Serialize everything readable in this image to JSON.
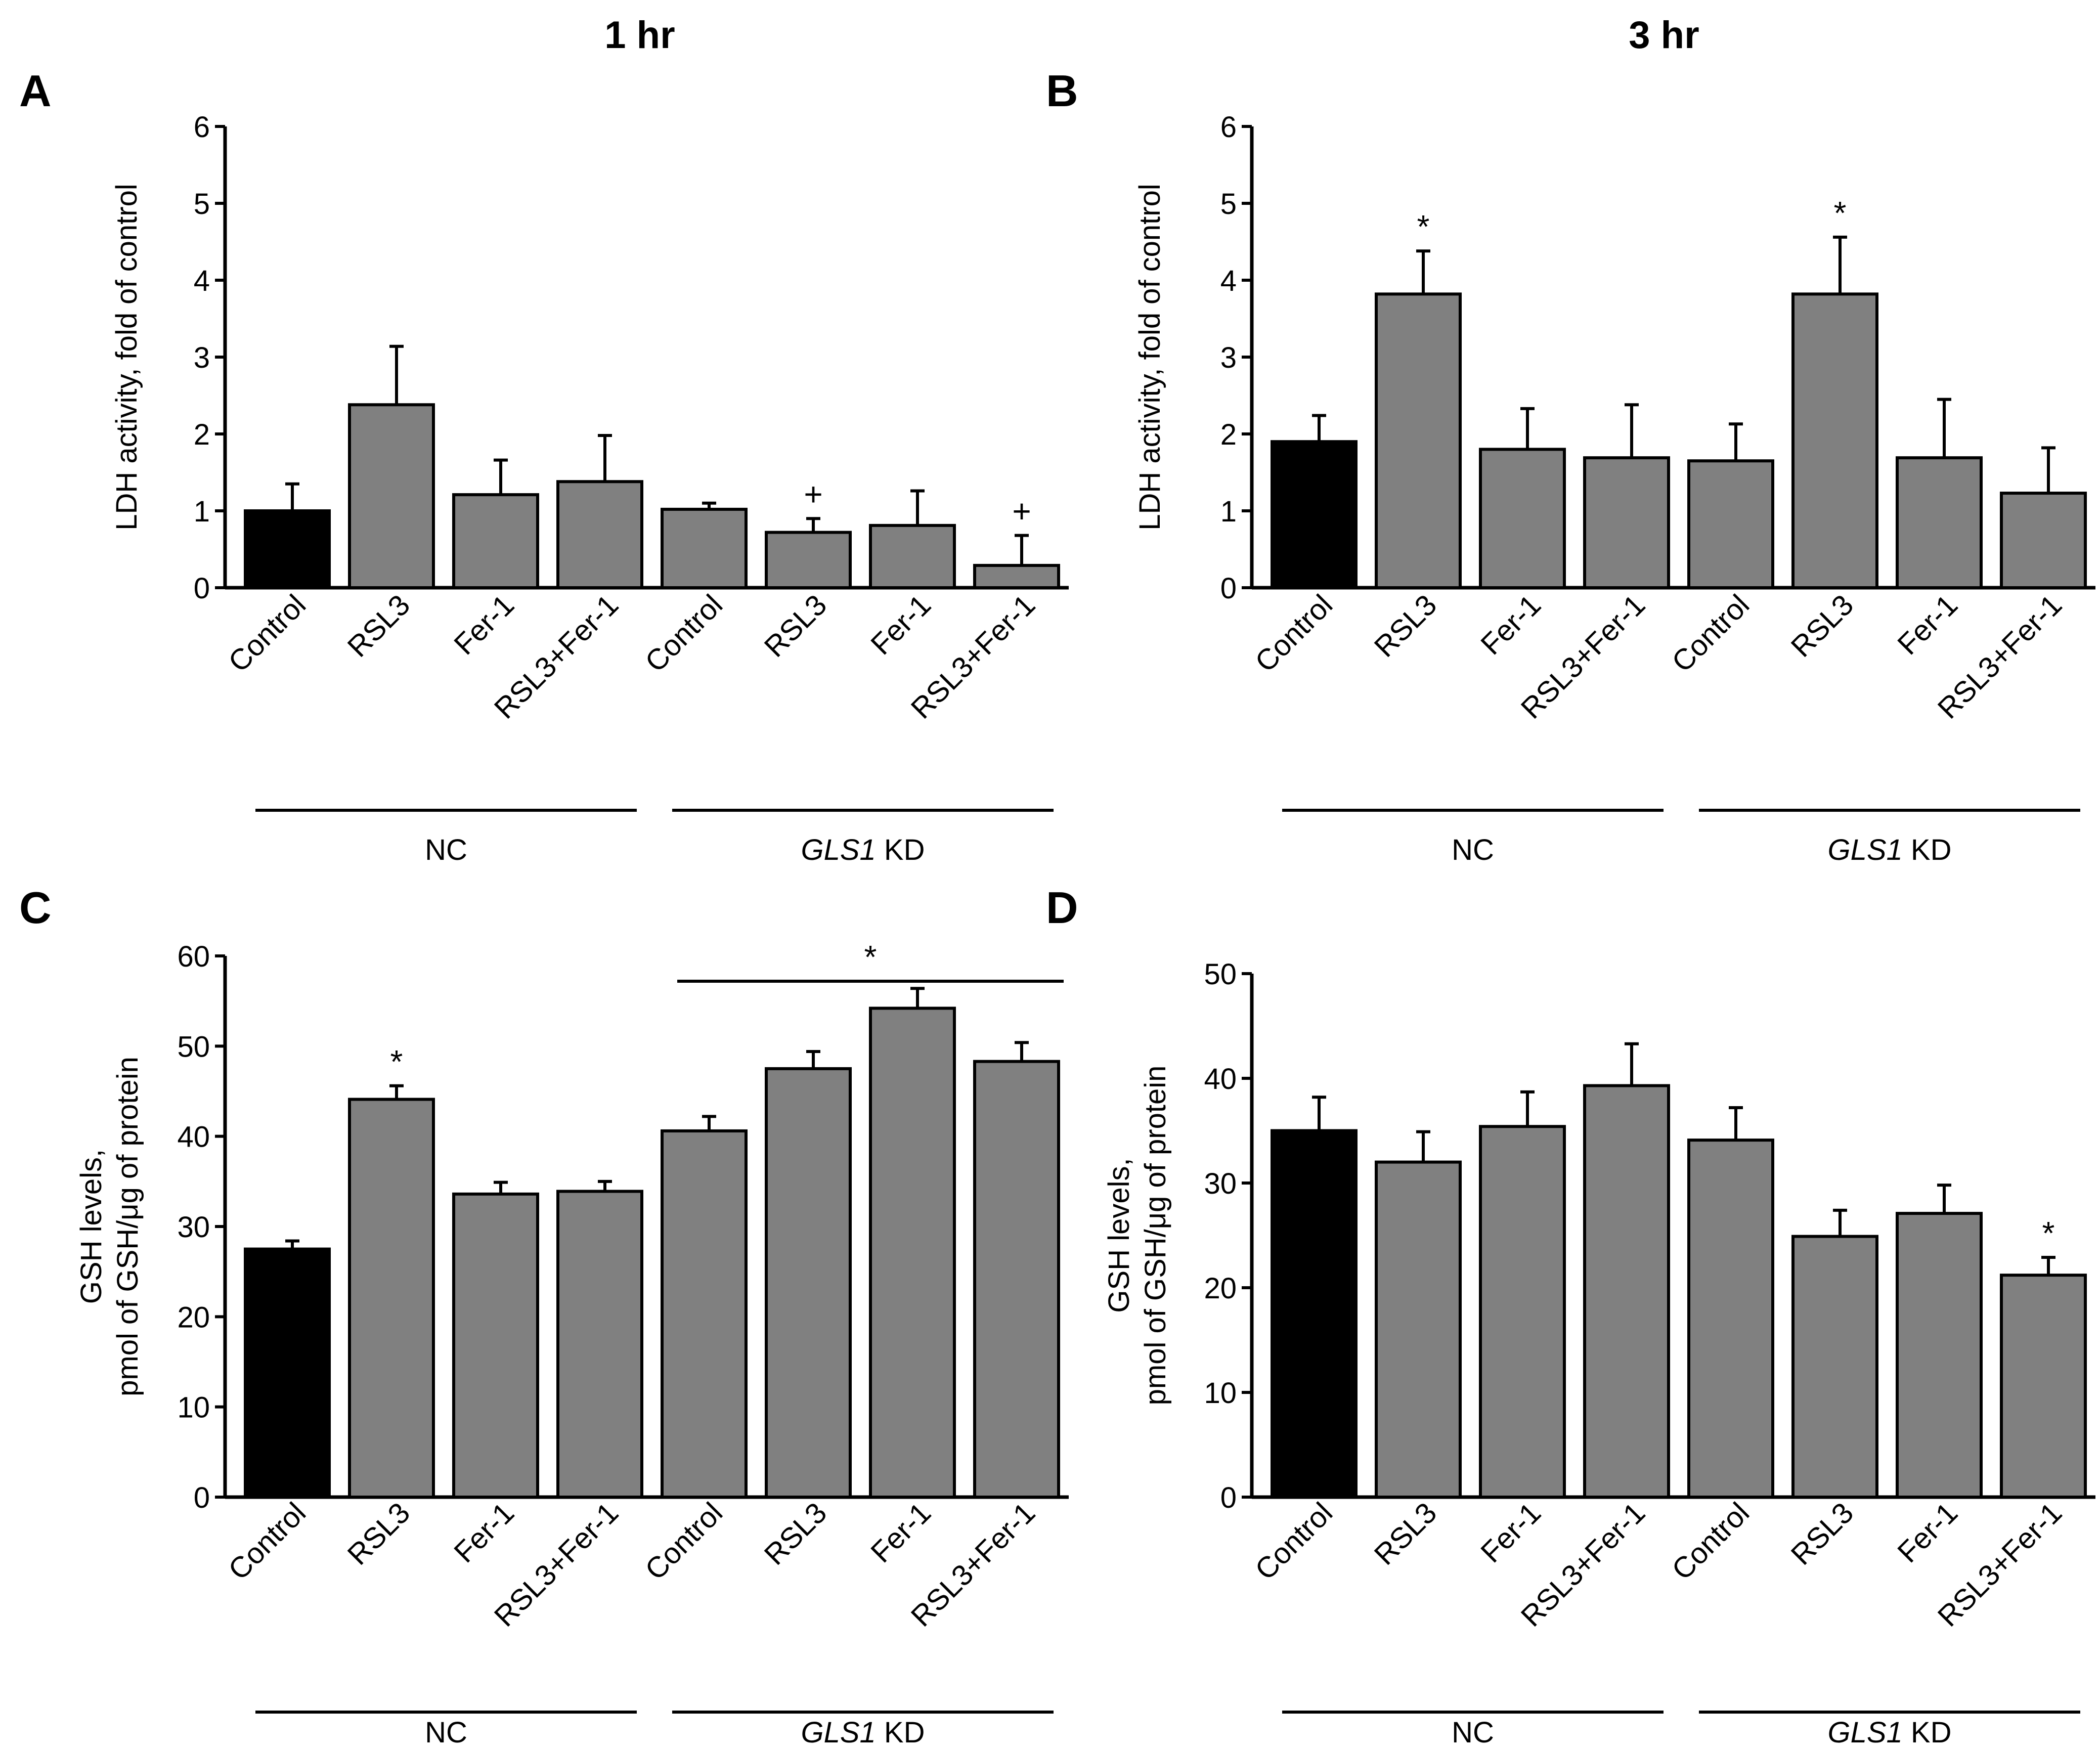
{
  "column_titles": [
    "1 hr",
    "3 hr"
  ],
  "group_labels": {
    "nc": "NC",
    "kd_gene": "GLS1",
    "kd_suffix": " KD"
  },
  "colors": {
    "control_bar": "#000000",
    "treatment_bar": "#808080"
  },
  "chart_data": [
    {
      "panel": "A",
      "type": "bar",
      "title": "1 hr",
      "ylabel": [
        "LDH activity, fold of control"
      ],
      "ylim": [
        0,
        6
      ],
      "yticks": [
        0,
        1,
        2,
        3,
        4,
        5,
        6
      ],
      "categories": [
        "Control",
        "RSL3",
        "Fer-1",
        "RSL3+Fer-1",
        "Control",
        "RSL3",
        "Fer-1",
        "RSL3+Fer-1"
      ],
      "groups": [
        {
          "label": "NC",
          "from": 0,
          "to": 3
        },
        {
          "label": "GLS1 KD",
          "from": 4,
          "to": 7
        }
      ],
      "values": [
        1.0,
        2.38,
        1.21,
        1.38,
        1.02,
        0.72,
        0.81,
        0.29
      ],
      "errors": [
        0.35,
        0.76,
        0.45,
        0.6,
        0.08,
        0.18,
        0.45,
        0.39
      ],
      "marks": [
        "",
        "",
        "",
        "",
        "",
        "+",
        "",
        "+"
      ],
      "bracket": null
    },
    {
      "panel": "B",
      "type": "bar",
      "title": "3 hr",
      "ylabel": [
        "LDH activity, fold of control"
      ],
      "ylim": [
        0,
        6
      ],
      "yticks": [
        0,
        1,
        2,
        3,
        4,
        5,
        6
      ],
      "categories": [
        "Control",
        "RSL3",
        "Fer-1",
        "RSL3+Fer-1",
        "Control",
        "RSL3",
        "Fer-1",
        "RSL3+Fer-1"
      ],
      "groups": [
        {
          "label": "NC",
          "from": 0,
          "to": 3
        },
        {
          "label": "GLS1 KD",
          "from": 4,
          "to": 7
        }
      ],
      "values": [
        1.9,
        3.82,
        1.8,
        1.69,
        1.65,
        3.82,
        1.69,
        1.23
      ],
      "errors": [
        0.34,
        0.56,
        0.53,
        0.69,
        0.48,
        0.74,
        0.76,
        0.59
      ],
      "marks": [
        "",
        "*",
        "",
        "",
        "",
        "*",
        "",
        ""
      ],
      "bracket": null
    },
    {
      "panel": "C",
      "type": "bar",
      "title": "",
      "ylabel": [
        "GSH levels,",
        "pmol of GSH/μg of protein"
      ],
      "ylim": [
        0,
        60
      ],
      "yticks": [
        0,
        10,
        20,
        30,
        40,
        50,
        60
      ],
      "categories": [
        "Control",
        "RSL3",
        "Fer-1",
        "RSL3+Fer-1",
        "Control",
        "RSL3",
        "Fer-1",
        "RSL3+Fer-1"
      ],
      "groups": [
        {
          "label": "NC",
          "from": 0,
          "to": 3
        },
        {
          "label": "GLS1 KD",
          "from": 4,
          "to": 7
        }
      ],
      "values": [
        27.5,
        44.1,
        33.6,
        33.9,
        40.6,
        47.5,
        54.2,
        48.3
      ],
      "errors": [
        0.9,
        1.5,
        1.3,
        1.1,
        1.6,
        1.9,
        2.2,
        2.1
      ],
      "marks": [
        "",
        "*",
        "",
        "",
        "",
        "",
        "",
        ""
      ],
      "bracket": {
        "from": 4,
        "to": 7,
        "label": "*"
      }
    },
    {
      "panel": "D",
      "type": "bar",
      "title": "",
      "ylabel": [
        "GSH levels,",
        "pmol of GSH/μg of protein"
      ],
      "ylim": [
        0,
        50
      ],
      "yticks": [
        0,
        10,
        20,
        30,
        40,
        50
      ],
      "categories": [
        "Control",
        "RSL3",
        "Fer-1",
        "RSL3+Fer-1",
        "Control",
        "RSL3",
        "Fer-1",
        "RSL3+Fer-1"
      ],
      "groups": [
        {
          "label": "NC",
          "from": 0,
          "to": 3
        },
        {
          "label": "GLS1 KD",
          "from": 4,
          "to": 7
        }
      ],
      "values": [
        35.0,
        32.0,
        35.4,
        39.3,
        34.1,
        24.9,
        27.1,
        21.2
      ],
      "errors": [
        3.2,
        2.9,
        3.3,
        4.0,
        3.1,
        2.5,
        2.7,
        1.7
      ],
      "marks": [
        "",
        "",
        "",
        "",
        "",
        "",
        "",
        "*"
      ],
      "bracket": null
    }
  ]
}
